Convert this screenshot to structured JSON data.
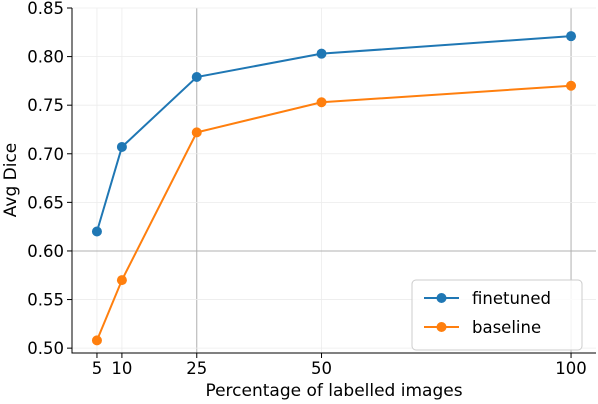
{
  "chart_data": {
    "type": "line",
    "title": "",
    "xlabel": "Percentage of labelled images",
    "ylabel": "Avg Dice",
    "x": [
      5,
      10,
      25,
      50,
      100
    ],
    "xticks": [
      5,
      10,
      25,
      50,
      100
    ],
    "yticks": [
      0.5,
      0.55,
      0.6,
      0.65,
      0.7,
      0.75,
      0.8,
      0.85
    ],
    "yticks_text": [
      "0.50",
      "0.55",
      "0.60",
      "0.65",
      "0.70",
      "0.75",
      "0.80",
      "0.85"
    ],
    "xlim": [
      0,
      105
    ],
    "ylim": [
      0.495,
      0.85
    ],
    "grid": true,
    "highlight_grid": {
      "x": [
        25,
        100
      ],
      "y": [
        0.6
      ]
    },
    "legend_position": "bottom-right",
    "series": [
      {
        "name": "finetuned",
        "color": "#1f77b4",
        "values": [
          0.62,
          0.707,
          0.779,
          0.803,
          0.821
        ]
      },
      {
        "name": "baseline",
        "color": "#ff7f0e",
        "values": [
          0.508,
          0.57,
          0.722,
          0.753,
          0.77
        ]
      }
    ]
  }
}
